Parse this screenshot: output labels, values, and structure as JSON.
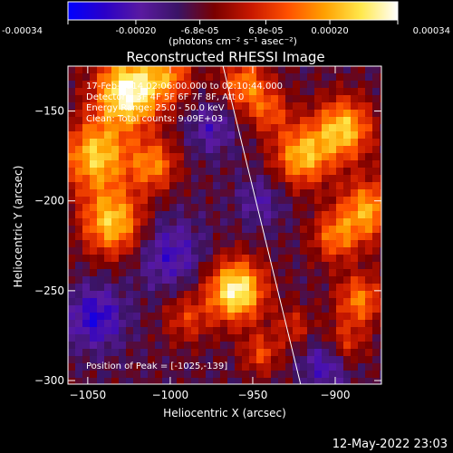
{
  "colorbar": {
    "tick_labels": [
      "-0.00034",
      "-0.00020",
      "-6.8e-05",
      "6.8e-05",
      "0.00020",
      "0.00034"
    ],
    "units_label": "(photons cm⁻² s⁻¹ asec⁻²)",
    "range": [
      -0.00034,
      0.00034
    ],
    "colors": [
      "#0000ff",
      "#2a00c8",
      "#5a1aa0",
      "#3a1466",
      "#7a0000",
      "#c81800",
      "#ff5000",
      "#ffa000",
      "#ffe84c",
      "#ffffff"
    ]
  },
  "annotations": {
    "time_range": "17-Feb-2014 02:06:00.000 to 02:10:44.000",
    "detectors": "Detectors: 3F 4F 5F 6F 7F 8F, Att 0",
    "energy_range": "Energy Range: 25.0 - 50.0 keV",
    "clean_counts": "Clean: Total counts: 9.09E+03",
    "peak_position": "Position of Peak = [-1025,-139]"
  },
  "footer": {
    "timestamp": "12-May-2022 23:03"
  },
  "chart_data": {
    "type": "heatmap",
    "title": "Reconstructed RHESSI Image",
    "xlabel": "Heliocentric X (arcsec)",
    "ylabel": "Heliocentric Y (arcsec)",
    "xlim": [
      -1062,
      -872
    ],
    "ylim": [
      -302,
      -125
    ],
    "x_ticks": [
      -1050,
      -1000,
      -950,
      -900
    ],
    "y_ticks": [
      -150,
      -200,
      -250,
      -300
    ],
    "x_tick_labels": [
      "−1050",
      "−1000",
      "−950",
      "−900"
    ],
    "y_tick_labels": [
      "−150",
      "−200",
      "−250",
      "−300"
    ],
    "colorbar_range": [
      -0.00034,
      0.00034
    ],
    "peak": [
      -1025,
      -139
    ],
    "limb_line": [
      [
        -968,
        -125
      ],
      [
        -921,
        -302
      ]
    ],
    "sources": [
      {
        "x": -1025,
        "y": -139,
        "sigma": 14,
        "amp": 1.0
      },
      {
        "x": -1045,
        "y": -175,
        "sigma": 14,
        "amp": 0.75
      },
      {
        "x": -1010,
        "y": -180,
        "sigma": 10,
        "amp": 0.55
      },
      {
        "x": -1035,
        "y": -212,
        "sigma": 13,
        "amp": 0.75
      },
      {
        "x": -960,
        "y": -250,
        "sigma": 12,
        "amp": 0.95
      },
      {
        "x": -945,
        "y": -285,
        "sigma": 8,
        "amp": 0.4
      },
      {
        "x": -990,
        "y": -265,
        "sigma": 10,
        "amp": 0.35
      },
      {
        "x": -955,
        "y": -135,
        "sigma": 10,
        "amp": 0.55
      },
      {
        "x": -940,
        "y": -150,
        "sigma": 9,
        "amp": 0.4
      },
      {
        "x": -920,
        "y": -175,
        "sigma": 12,
        "amp": 0.7
      },
      {
        "x": -895,
        "y": -160,
        "sigma": 12,
        "amp": 0.75
      },
      {
        "x": -880,
        "y": -205,
        "sigma": 12,
        "amp": 0.65
      },
      {
        "x": -900,
        "y": -220,
        "sigma": 10,
        "amp": 0.5
      },
      {
        "x": -885,
        "y": -255,
        "sigma": 10,
        "amp": 0.55
      },
      {
        "x": -895,
        "y": -280,
        "sigma": 9,
        "amp": 0.4
      },
      {
        "x": -1000,
        "y": -130,
        "sigma": 10,
        "amp": 0.45
      },
      {
        "x": -925,
        "y": -270,
        "sigma": 8,
        "amp": 0.3
      },
      {
        "x": -1045,
        "y": -265,
        "sigma": 12,
        "amp": -0.45
      },
      {
        "x": -1000,
        "y": -230,
        "sigma": 14,
        "amp": -0.35
      },
      {
        "x": -975,
        "y": -160,
        "sigma": 10,
        "amp": -0.3
      },
      {
        "x": -905,
        "y": -290,
        "sigma": 10,
        "amp": -0.4
      },
      {
        "x": -945,
        "y": -200,
        "sigma": 10,
        "amp": -0.25
      }
    ]
  }
}
